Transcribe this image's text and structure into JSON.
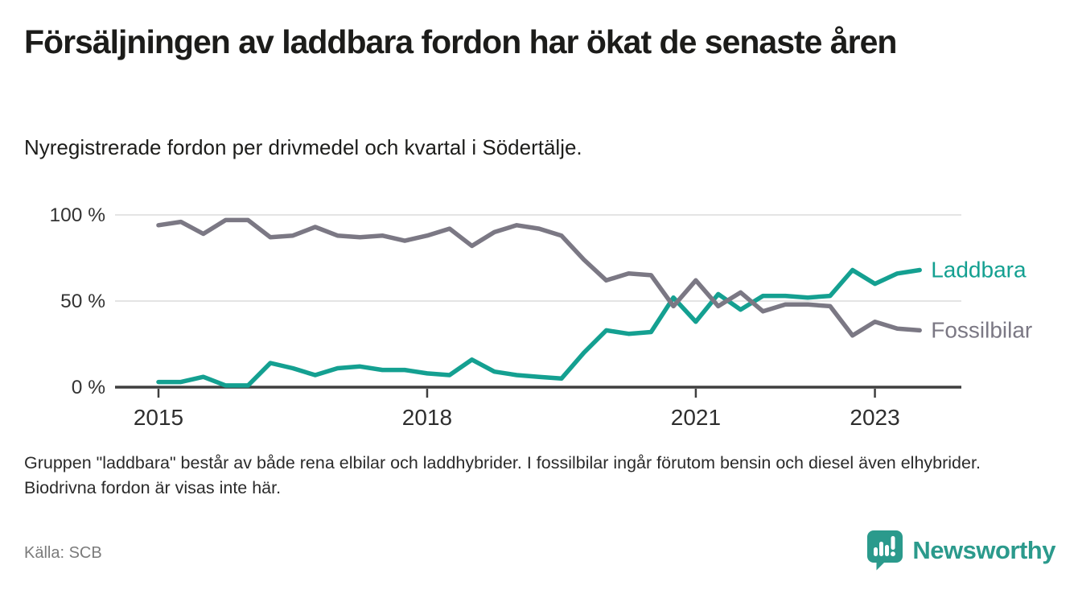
{
  "header": {
    "title": "Försäljningen av laddbara fordon har ökat de senaste åren",
    "subtitle": "Nyregistrerade fordon per drivmedel och kvartal i Södertälje."
  },
  "chart_data": {
    "type": "line",
    "x_unit": "quarter",
    "x_start": "2015-Q1",
    "x_end": "2023-Q3",
    "grid": "horizontal",
    "legend_position": "line-end-labels",
    "ylim": [
      0,
      100
    ],
    "y_ticks": [
      {
        "label": "0 %",
        "value": 0
      },
      {
        "label": "50 %",
        "value": 50
      },
      {
        "label": "100 %",
        "value": 100
      }
    ],
    "x_labels": [
      {
        "label": "2015",
        "index": 0
      },
      {
        "label": "2018",
        "index": 12
      },
      {
        "label": "2021",
        "index": 24
      },
      {
        "label": "2023",
        "index": 32
      }
    ],
    "quarters": [
      "2015-Q1",
      "2015-Q2",
      "2015-Q3",
      "2015-Q4",
      "2016-Q1",
      "2016-Q2",
      "2016-Q3",
      "2016-Q4",
      "2017-Q1",
      "2017-Q2",
      "2017-Q3",
      "2017-Q4",
      "2018-Q1",
      "2018-Q2",
      "2018-Q3",
      "2018-Q4",
      "2019-Q1",
      "2019-Q2",
      "2019-Q3",
      "2019-Q4",
      "2020-Q1",
      "2020-Q2",
      "2020-Q3",
      "2020-Q4",
      "2021-Q1",
      "2021-Q2",
      "2021-Q3",
      "2021-Q4",
      "2022-Q1",
      "2022-Q2",
      "2022-Q3",
      "2022-Q4",
      "2023-Q1",
      "2023-Q2",
      "2023-Q3"
    ],
    "series": [
      {
        "name": "Laddbara",
        "color": "#14a091",
        "values": [
          3,
          3,
          6,
          1,
          1,
          14,
          11,
          7,
          11,
          12,
          10,
          10,
          8,
          7,
          16,
          9,
          7,
          6,
          5,
          20,
          33,
          31,
          32,
          52,
          38,
          54,
          45,
          53,
          53,
          52,
          53,
          68,
          60,
          66,
          68
        ]
      },
      {
        "name": "Fossilbilar",
        "color": "#7b7884",
        "values": [
          94,
          96,
          89,
          97,
          97,
          87,
          88,
          93,
          88,
          87,
          88,
          85,
          88,
          92,
          82,
          90,
          94,
          92,
          88,
          74,
          62,
          66,
          65,
          47,
          62,
          47,
          55,
          44,
          48,
          48,
          47,
          30,
          38,
          34,
          33
        ]
      }
    ],
    "axis_color": "#3f3f3f",
    "gridline_color": "#dbdbdb",
    "tick_label_color": "#333333"
  },
  "footnote": "Gruppen \"laddbara\" består av både rena elbilar och laddhybrider. I fossilbilar ingår förutom bensin och diesel även elhybrider. Biodrivna fordon är visas inte här.",
  "source": {
    "label": "Källa: SCB"
  },
  "branding": {
    "name": "Newsworthy",
    "color": "#2b9a8c"
  }
}
